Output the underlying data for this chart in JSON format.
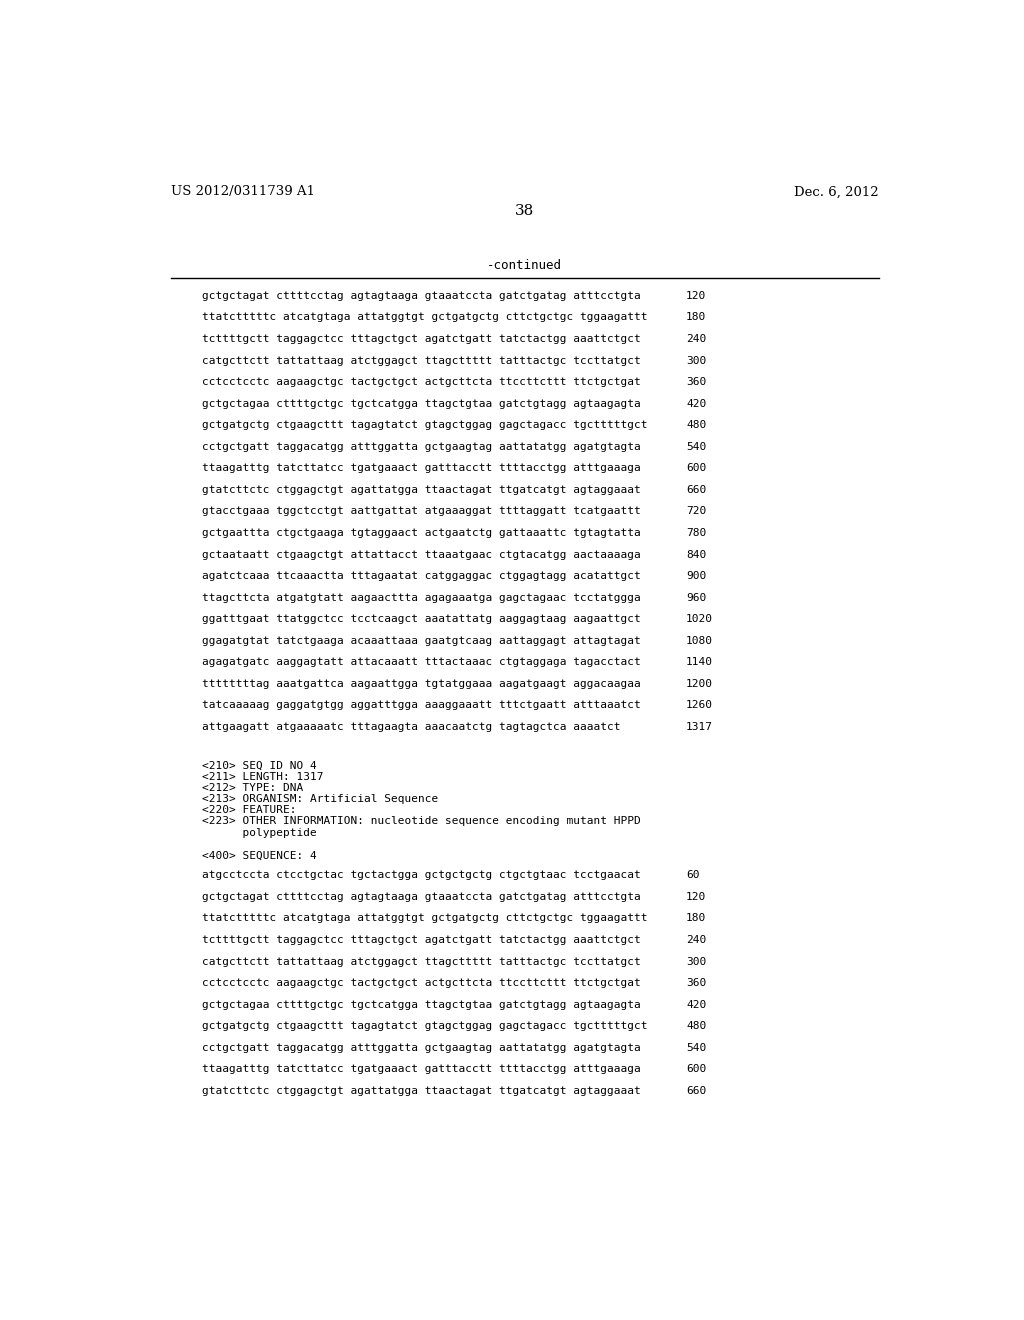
{
  "header_left": "US 2012/0311739 A1",
  "header_right": "Dec. 6, 2012",
  "page_number": "38",
  "continued_label": "-continued",
  "background_color": "#ffffff",
  "text_color": "#000000",
  "sequence_lines_top": [
    {
      "seq": "gctgctagat cttttcctag agtagtaaga gtaaatccta gatctgatag atttcctgta",
      "num": "120"
    },
    {
      "seq": "ttatctttttc atcatgtaga attatggtgt gctgatgctg cttctgctgc tggaagattt",
      "num": "180"
    },
    {
      "seq": "tcttttgctt taggagctcc tttagctgct agatctgatt tatctactgg aaattctgct",
      "num": "240"
    },
    {
      "seq": "catgcttctt tattattaag atctggagct ttagcttttt tatttactgc tccttatgct",
      "num": "300"
    },
    {
      "seq": "cctcctcctc aagaagctgc tactgctgct actgcttcta ttccttcttt ttctgctgat",
      "num": "360"
    },
    {
      "seq": "gctgctagaa cttttgctgc tgctcatgga ttagctgtaa gatctgtagg agtaagagta",
      "num": "420"
    },
    {
      "seq": "gctgatgctg ctgaagcttt tagagtatct gtagctggag gagctagacc tgctttttgct",
      "num": "480"
    },
    {
      "seq": "cctgctgatt taggacatgg atttggatta gctgaagtag aattatatgg agatgtagta",
      "num": "540"
    },
    {
      "seq": "ttaagatttg tatcttatcc tgatgaaact gatttacctt ttttacctgg atttgaaaga",
      "num": "600"
    },
    {
      "seq": "gtatcttctc ctggagctgt agattatgga ttaactagat ttgatcatgt agtaggaaat",
      "num": "660"
    },
    {
      "seq": "gtacctgaaa tggctcctgt aattgattat atgaaaggat ttttaggatt tcatgaattt",
      "num": "720"
    },
    {
      "seq": "gctgaattta ctgctgaaga tgtaggaact actgaatctg gattaaattc tgtagtatta",
      "num": "780"
    },
    {
      "seq": "gctaataatt ctgaagctgt attattacct ttaaatgaac ctgtacatgg aactaaaaga",
      "num": "840"
    },
    {
      "seq": "agatctcaaa ttcaaactta tttagaatat catggaggac ctggagtagg acatattgct",
      "num": "900"
    },
    {
      "seq": "ttagcttcta atgatgtatt aagaacttta agagaaatga gagctagaac tcctatggga",
      "num": "960"
    },
    {
      "seq": "ggatttgaat ttatggctcc tcctcaagct aaatattatg aaggagtaag aagaattgct",
      "num": "1020"
    },
    {
      "seq": "ggagatgtat tatctgaaga acaaattaaa gaatgtcaag aattaggagt attagtagat",
      "num": "1080"
    },
    {
      "seq": "agagatgatc aaggagtatt attacaaatt tttactaaac ctgtaggaga tagacctact",
      "num": "1140"
    },
    {
      "seq": "ttttttttag aaatgattca aagaattgga tgtatggaaa aagatgaagt aggacaagaa",
      "num": "1200"
    },
    {
      "seq": "tatcaaaaag gaggatgtgg aggatttgga aaaggaaatt tttctgaatt atttaaatct",
      "num": "1260"
    },
    {
      "seq": "attgaagatt atgaaaaatc tttagaagta aaacaatctg tagtagctca aaaatct",
      "num": "1317"
    }
  ],
  "metadata_lines": [
    "<210> SEQ ID NO 4",
    "<211> LENGTH: 1317",
    "<212> TYPE: DNA",
    "<213> ORGANISM: Artificial Sequence",
    "<220> FEATURE:",
    "<223> OTHER INFORMATION: nucleotide sequence encoding mutant HPPD",
    "      polypeptide"
  ],
  "sequence_label": "<400> SEQUENCE: 4",
  "sequence_lines_bottom": [
    {
      "seq": "atgcctccta ctcctgctac tgctactgga gctgctgctg ctgctgtaac tcctgaacat",
      "num": "60"
    },
    {
      "seq": "gctgctagat cttttcctag agtagtaaga gtaaatccta gatctgatag atttcctgta",
      "num": "120"
    },
    {
      "seq": "ttatctttttc atcatgtaga attatggtgt gctgatgctg cttctgctgc tggaagattt",
      "num": "180"
    },
    {
      "seq": "tcttttgctt taggagctcc tttagctgct agatctgatt tatctactgg aaattctgct",
      "num": "240"
    },
    {
      "seq": "catgcttctt tattattaag atctggagct ttagcttttt tatttactgc tccttatgct",
      "num": "300"
    },
    {
      "seq": "cctcctcctc aagaagctgc tactgctgct actgcttcta ttccttcttt ttctgctgat",
      "num": "360"
    },
    {
      "seq": "gctgctagaa cttttgctgc tgctcatgga ttagctgtaa gatctgtagg agtaagagta",
      "num": "420"
    },
    {
      "seq": "gctgatgctg ctgaagcttt tagagtatct gtagctggag gagctagacc tgctttttgct",
      "num": "480"
    },
    {
      "seq": "cctgctgatt taggacatgg atttggatta gctgaagtag aattatatgg agatgtagta",
      "num": "540"
    },
    {
      "seq": "ttaagatttg tatcttatcc tgatgaaact gatttacctt ttttacctgg atttgaaaga",
      "num": "600"
    },
    {
      "seq": "gtatcttctc ctggagctgt agattatgga ttaactagat ttgatcatgt agtaggaaat",
      "num": "660"
    }
  ]
}
